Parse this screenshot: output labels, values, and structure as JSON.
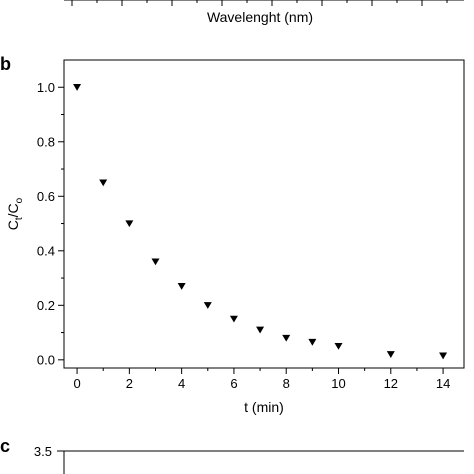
{
  "panels": {
    "a": {
      "xlabel": "Wavelenght (nm)"
    },
    "b": {
      "label": "b"
    },
    "c": {
      "label": "c",
      "first_ytick": "3.5"
    }
  },
  "chart_data": {
    "type": "scatter",
    "marker": "triangle-down",
    "marker_color": "#000000",
    "x": [
      0,
      1,
      2,
      3,
      4,
      5,
      6,
      7,
      8,
      9,
      10,
      12,
      14
    ],
    "y": [
      1.0,
      0.65,
      0.5,
      0.36,
      0.27,
      0.2,
      0.15,
      0.11,
      0.08,
      0.065,
      0.05,
      0.02,
      0.015
    ],
    "xlabel": "t (min)",
    "ylabel_main": "C",
    "ylabel_sub1": "t",
    "ylabel_slash": "/C",
    "ylabel_sub2": "o",
    "xlim": [
      -0.5,
      14.8
    ],
    "ylim": [
      -0.03,
      1.1
    ],
    "xticks": [
      "0",
      "2",
      "4",
      "6",
      "8",
      "10",
      "12",
      "14"
    ],
    "yticks": [
      "0.0",
      "0.2",
      "0.4",
      "0.6",
      "0.8",
      "1.0"
    ],
    "grid": false,
    "legend": "none"
  }
}
